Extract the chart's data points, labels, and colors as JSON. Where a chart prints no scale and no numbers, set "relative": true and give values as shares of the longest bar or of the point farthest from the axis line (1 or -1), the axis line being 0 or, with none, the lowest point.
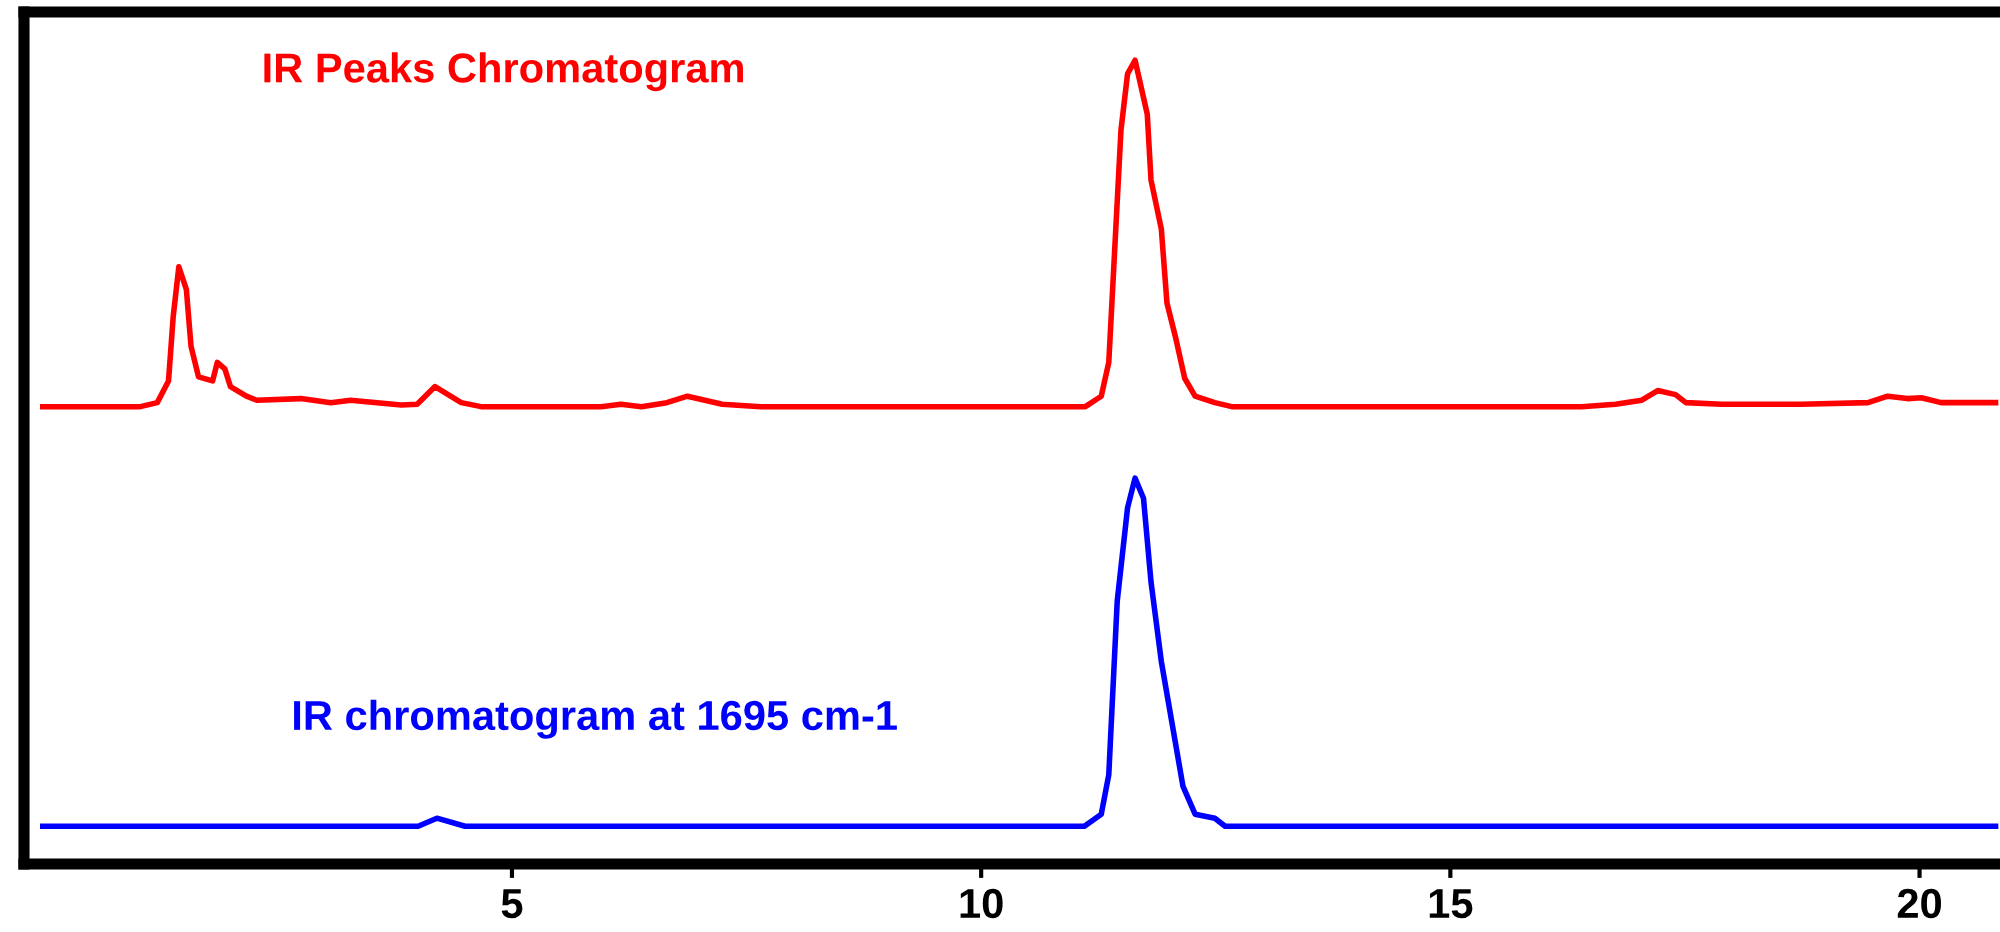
{
  "chart_data": {
    "type": "line",
    "relative": true,
    "xlim": [
      -0.2,
      20.9
    ],
    "xticks": [
      5,
      10,
      15,
      20
    ],
    "grid": false,
    "legend": false,
    "marker": "none",
    "line_style": "solid",
    "series": [
      {
        "name": "IR Peaks Chromatogram",
        "color": "#ff0000",
        "x": [
          0.0,
          1.04,
          1.22,
          1.34,
          1.39,
          1.45,
          1.53,
          1.58,
          1.66,
          1.81,
          1.86,
          1.94,
          2.0,
          2.17,
          2.28,
          2.75,
          3.07,
          3.28,
          3.82,
          3.99,
          4.18,
          4.46,
          4.67,
          5.95,
          6.16,
          6.38,
          6.65,
          6.87,
          7.24,
          7.65,
          11.11,
          11.28,
          11.36,
          11.49,
          11.56,
          11.64,
          11.77,
          11.81,
          11.92,
          11.98,
          12.07,
          12.17,
          12.28,
          12.49,
          12.67,
          16.4,
          16.76,
          17.04,
          17.21,
          17.4,
          17.51,
          17.89,
          18.74,
          19.45,
          19.66,
          19.87,
          20.02,
          20.23,
          20.81
        ],
        "values": [
          0.569,
          0.569,
          0.574,
          0.601,
          0.681,
          0.743,
          0.715,
          0.644,
          0.606,
          0.601,
          0.624,
          0.616,
          0.594,
          0.582,
          0.577,
          0.579,
          0.574,
          0.577,
          0.571,
          0.572,
          0.594,
          0.574,
          0.569,
          0.569,
          0.572,
          0.569,
          0.574,
          0.582,
          0.572,
          0.569,
          0.569,
          0.582,
          0.624,
          0.913,
          0.983,
          1.0,
          0.933,
          0.851,
          0.79,
          0.698,
          0.656,
          0.604,
          0.582,
          0.574,
          0.569,
          0.569,
          0.572,
          0.577,
          0.589,
          0.584,
          0.574,
          0.572,
          0.572,
          0.574,
          0.582,
          0.579,
          0.58,
          0.574,
          0.574
        ]
      },
      {
        "name": "IR chromatogram at 1695 cm-1",
        "color": "#0000ff",
        "x": [
          0.0,
          4.0,
          4.2,
          4.5,
          11.1,
          11.28,
          11.36,
          11.45,
          11.56,
          11.64,
          11.73,
          11.81,
          11.92,
          12.03,
          12.15,
          12.28,
          12.49,
          12.6,
          20.81
        ],
        "values": [
          0.047,
          0.047,
          0.057,
          0.047,
          0.047,
          0.062,
          0.111,
          0.327,
          0.443,
          0.48,
          0.455,
          0.351,
          0.252,
          0.178,
          0.097,
          0.062,
          0.057,
          0.047,
          0.047
        ]
      }
    ]
  }
}
